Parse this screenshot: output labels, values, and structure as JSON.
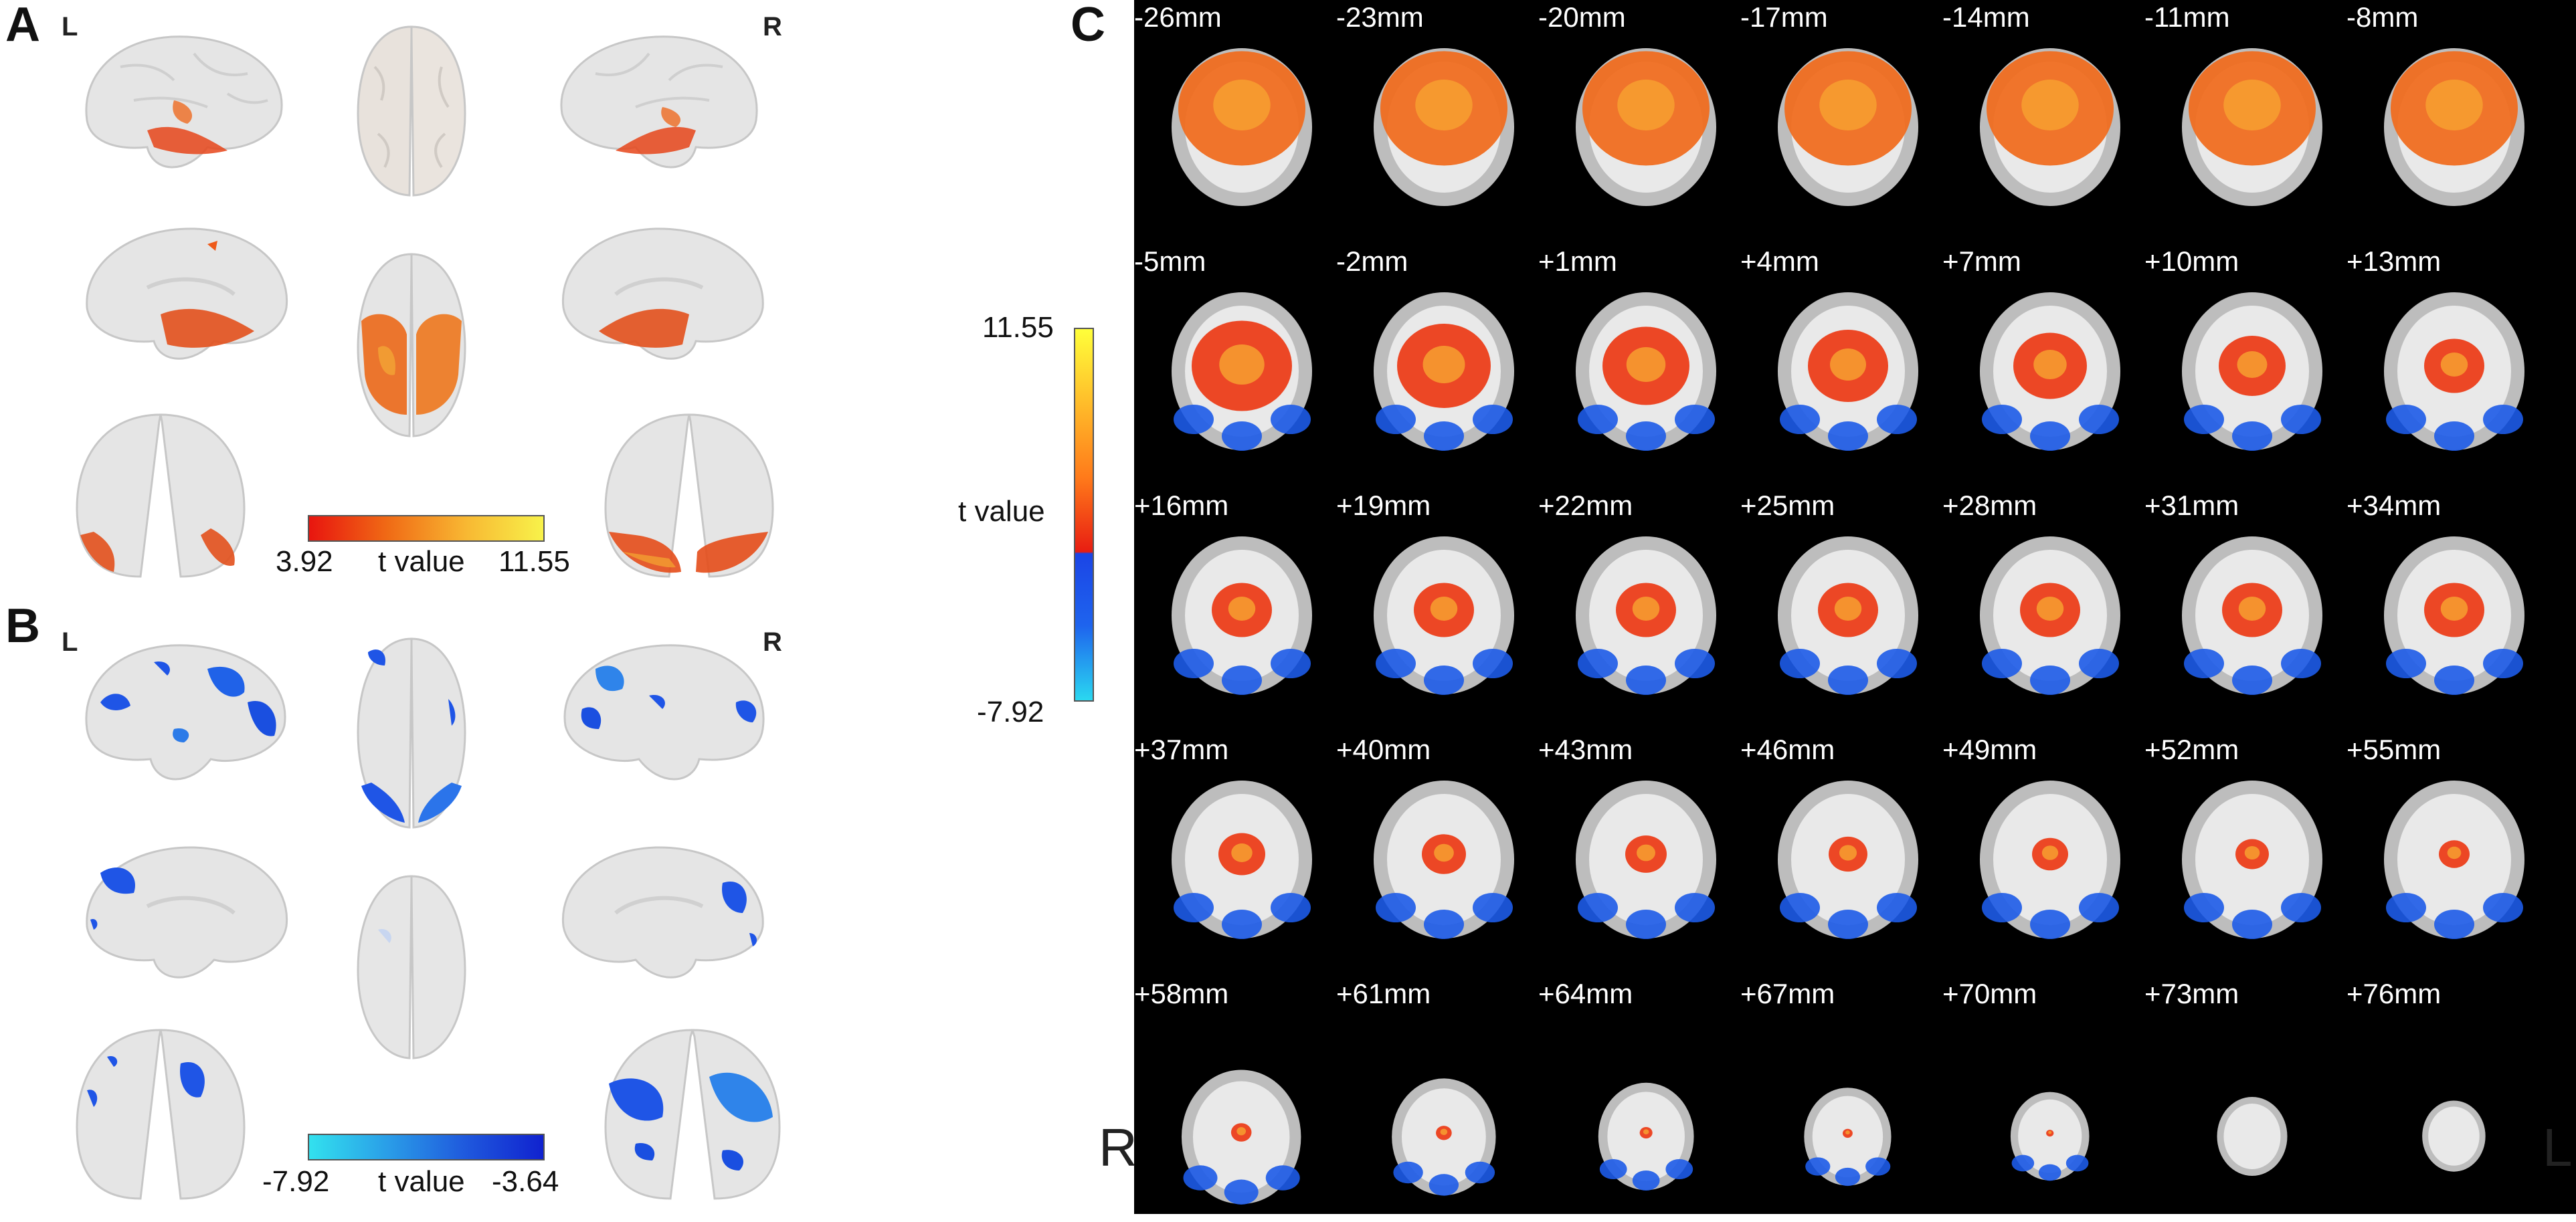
{
  "panels": {
    "A": {
      "letter": "A",
      "left_label": "L",
      "right_label": "R",
      "colorbar": {
        "min": "3.92",
        "label": "t value",
        "max": "11.55",
        "low_color": "#e8150f",
        "high_color": "#f8f24a"
      }
    },
    "B": {
      "letter": "B",
      "left_label": "L",
      "right_label": "R",
      "colorbar": {
        "min": "-7.92",
        "label": "t value",
        "max": "-3.64",
        "low_color": "#32e1ee",
        "high_color": "#1022cf"
      }
    },
    "C": {
      "letter": "C",
      "colorbar": {
        "max": "11.55",
        "label": "t value",
        "min": "-7.92",
        "colors": [
          "#ffff3a",
          "#ff7a1a",
          "#e81d12",
          "#1b45e6",
          "#2ad8f0"
        ]
      },
      "left_direction": "R",
      "right_direction": "L",
      "slices": [
        "-26mm",
        "-23mm",
        "-20mm",
        "-17mm",
        "-14mm",
        "-11mm",
        "-8mm",
        "-5mm",
        "-2mm",
        "+1mm",
        "+4mm",
        "+7mm",
        "+10mm",
        "+13mm",
        "+16mm",
        "+19mm",
        "+22mm",
        "+25mm",
        "+28mm",
        "+31mm",
        "+34mm",
        "+37mm",
        "+40mm",
        "+43mm",
        "+46mm",
        "+49mm",
        "+52mm",
        "+55mm",
        "+58mm",
        "+61mm",
        "+64mm",
        "+67mm",
        "+70mm",
        "+73mm",
        "+76mm"
      ]
    }
  },
  "colors": {
    "positive_activation": "#ef4a12",
    "negative_activation": "#1d5be8",
    "brain_surface": "#e4e4e4",
    "slice_background": "#000000"
  }
}
